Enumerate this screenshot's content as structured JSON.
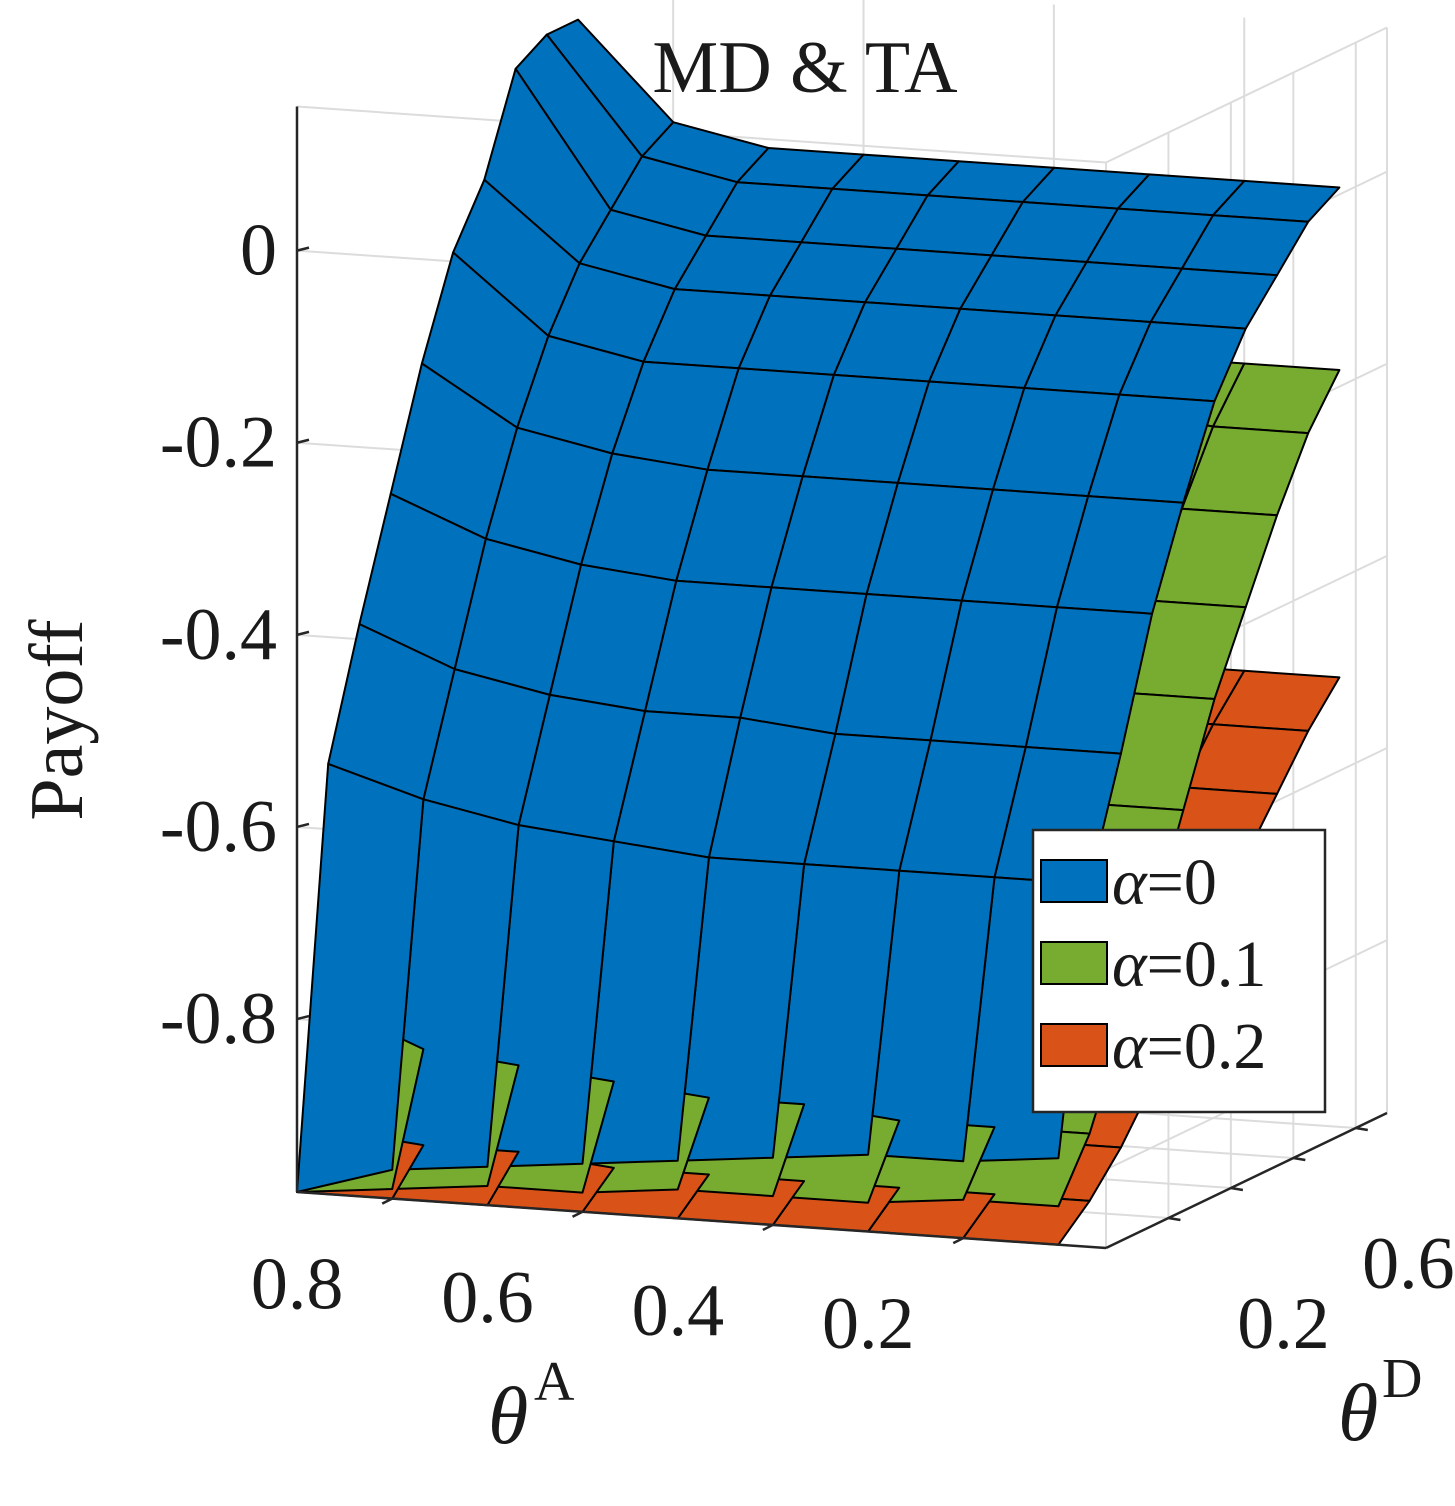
{
  "chart_data": {
    "type": "surface3d",
    "title": "MD & TA",
    "zlabel": "Payoff",
    "xlabel_symbol": "θ",
    "xlabel_sup": "A",
    "ylabel_symbol": "θ",
    "ylabel_sup": "D",
    "x_ticks": [
      "0.8",
      "0.6",
      "0.4",
      "0.2"
    ],
    "y_ticks": [
      "0.2",
      "0.6"
    ],
    "z_ticks": [
      "0",
      "-0.2",
      "-0.4",
      "-0.6",
      "-0.8"
    ],
    "x_range": [
      0.05,
      0.9
    ],
    "y_range": [
      0.0,
      0.9
    ],
    "z_range": [
      -0.98,
      0.15
    ],
    "thetaA": [
      0.9,
      0.8,
      0.7,
      0.6,
      0.5,
      0.4,
      0.3,
      0.2,
      0.1
    ],
    "thetaD": [
      0.9,
      0.8,
      0.7,
      0.6,
      0.5,
      0.4,
      0.3,
      0.2,
      0.1,
      0.0
    ],
    "legend_position": "lower-right",
    "series": [
      {
        "name": "α=0",
        "legend_symbol": "α",
        "legend_value": "=0",
        "color": "#0072BD",
        "values": [
          [
            0.1,
            0.1,
            0.08,
            -0.02,
            -0.08,
            -0.18,
            -0.3,
            -0.42,
            -0.55,
            -0.98
          ],
          [
            0.0,
            -0.02,
            -0.06,
            -0.1,
            -0.16,
            -0.24,
            -0.34,
            -0.46,
            -0.58,
            -0.95
          ],
          [
            -0.02,
            -0.04,
            -0.08,
            -0.12,
            -0.18,
            -0.26,
            -0.36,
            -0.48,
            -0.6,
            -0.94
          ],
          [
            -0.02,
            -0.04,
            -0.08,
            -0.12,
            -0.18,
            -0.27,
            -0.37,
            -0.49,
            -0.61,
            -0.93
          ],
          [
            -0.02,
            -0.04,
            -0.08,
            -0.12,
            -0.18,
            -0.27,
            -0.37,
            -0.49,
            -0.62,
            -0.92
          ],
          [
            -0.02,
            -0.04,
            -0.08,
            -0.12,
            -0.18,
            -0.27,
            -0.37,
            -0.5,
            -0.62,
            -0.91
          ],
          [
            -0.02,
            -0.04,
            -0.08,
            -0.12,
            -0.18,
            -0.27,
            -0.37,
            -0.5,
            -0.62,
            -0.9
          ],
          [
            -0.02,
            -0.04,
            -0.08,
            -0.12,
            -0.18,
            -0.27,
            -0.37,
            -0.5,
            -0.62,
            -0.9
          ],
          [
            -0.02,
            -0.04,
            -0.08,
            -0.12,
            -0.18,
            -0.27,
            -0.37,
            -0.5,
            -0.62,
            -0.89
          ]
        ]
      },
      {
        "name": "α=0.1",
        "legend_symbol": "α",
        "legend_value": "=0.1",
        "color": "#77AC30",
        "values": [
          [
            -0.16,
            -0.2,
            -0.27,
            -0.33,
            -0.4,
            -0.5,
            -0.6,
            -0.7,
            -0.8,
            -0.98
          ],
          [
            -0.18,
            -0.22,
            -0.29,
            -0.36,
            -0.44,
            -0.54,
            -0.64,
            -0.74,
            -0.84,
            -0.97
          ],
          [
            -0.19,
            -0.23,
            -0.3,
            -0.38,
            -0.46,
            -0.56,
            -0.66,
            -0.76,
            -0.85,
            -0.96
          ],
          [
            -0.2,
            -0.24,
            -0.31,
            -0.39,
            -0.47,
            -0.57,
            -0.67,
            -0.77,
            -0.86,
            -0.96
          ],
          [
            -0.2,
            -0.25,
            -0.32,
            -0.4,
            -0.48,
            -0.58,
            -0.68,
            -0.78,
            -0.87,
            -0.95
          ],
          [
            -0.21,
            -0.25,
            -0.32,
            -0.4,
            -0.48,
            -0.58,
            -0.68,
            -0.78,
            -0.87,
            -0.95
          ],
          [
            -0.21,
            -0.25,
            -0.33,
            -0.41,
            -0.49,
            -0.59,
            -0.69,
            -0.79,
            -0.88,
            -0.95
          ],
          [
            -0.21,
            -0.26,
            -0.33,
            -0.41,
            -0.49,
            -0.59,
            -0.69,
            -0.79,
            -0.88,
            -0.94
          ],
          [
            -0.21,
            -0.26,
            -0.33,
            -0.41,
            -0.49,
            -0.59,
            -0.69,
            -0.79,
            -0.88,
            -0.94
          ]
        ]
      },
      {
        "name": "α=0.2",
        "legend_symbol": "α",
        "legend_value": "=0.2",
        "color": "#D95319",
        "values": [
          [
            -0.48,
            -0.52,
            -0.57,
            -0.62,
            -0.68,
            -0.75,
            -0.82,
            -0.88,
            -0.93,
            -0.98
          ],
          [
            -0.5,
            -0.54,
            -0.59,
            -0.64,
            -0.7,
            -0.77,
            -0.84,
            -0.89,
            -0.94,
            -0.98
          ],
          [
            -0.51,
            -0.55,
            -0.6,
            -0.65,
            -0.71,
            -0.78,
            -0.85,
            -0.9,
            -0.94,
            -0.98
          ],
          [
            -0.52,
            -0.56,
            -0.61,
            -0.66,
            -0.72,
            -0.79,
            -0.85,
            -0.9,
            -0.95,
            -0.98
          ],
          [
            -0.52,
            -0.56,
            -0.61,
            -0.66,
            -0.72,
            -0.79,
            -0.86,
            -0.91,
            -0.95,
            -0.98
          ],
          [
            -0.52,
            -0.57,
            -0.62,
            -0.67,
            -0.73,
            -0.8,
            -0.86,
            -0.91,
            -0.95,
            -0.98
          ],
          [
            -0.53,
            -0.57,
            -0.62,
            -0.67,
            -0.73,
            -0.8,
            -0.86,
            -0.91,
            -0.95,
            -0.98
          ],
          [
            -0.53,
            -0.57,
            -0.62,
            -0.67,
            -0.73,
            -0.8,
            -0.86,
            -0.91,
            -0.95,
            -0.98
          ],
          [
            -0.53,
            -0.57,
            -0.62,
            -0.67,
            -0.73,
            -0.8,
            -0.86,
            -0.91,
            -0.95,
            -0.98
          ]
        ]
      }
    ]
  }
}
